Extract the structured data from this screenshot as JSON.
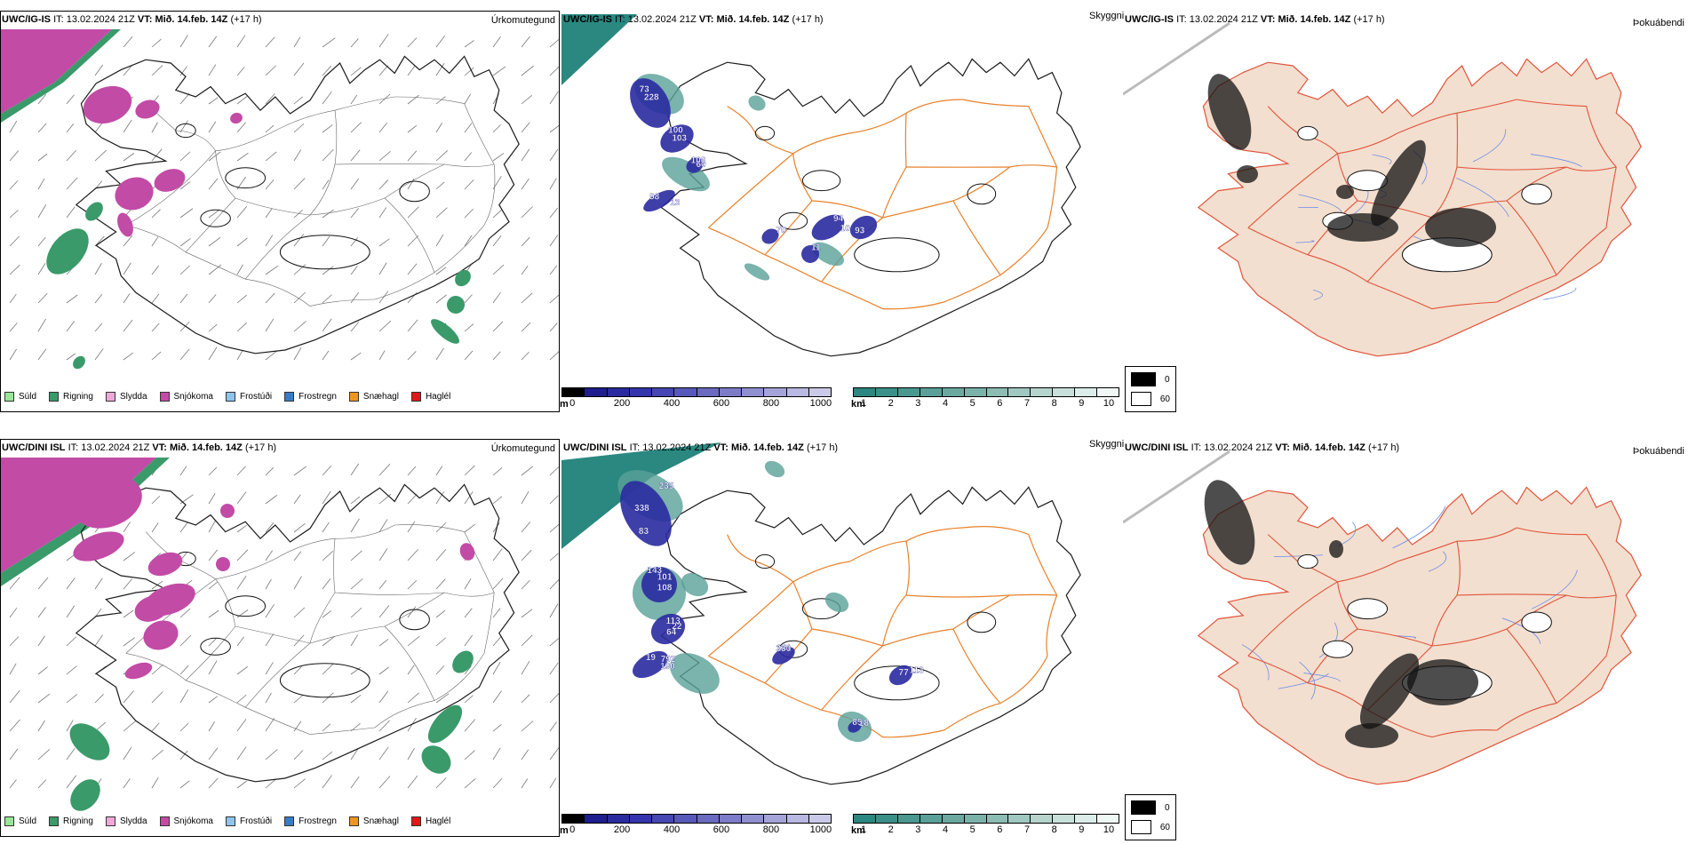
{
  "rows": [
    {
      "model": "UWC/IG-IS",
      "it_label": "IT:",
      "it_value": "13.02.2024 21Z",
      "vt_label": "VT:",
      "vt_value": "Mið. 14.feb. 14Z",
      "lead": "(+17 h)"
    },
    {
      "model": "UWC/DINI ISL",
      "it_label": "IT:",
      "it_value": "13.02.2024 21Z",
      "vt_label": "VT:",
      "vt_value": "Mið. 14.feb. 14Z",
      "lead": "(+17 h)"
    }
  ],
  "panel_titles": {
    "precip_type": "Úrkomutegund",
    "visibility": "Skyggni",
    "fog": "Þokuábendi"
  },
  "precip_legend": [
    {
      "label": "Súld",
      "color": "#98e698"
    },
    {
      "label": "Rigning",
      "color": "#3a9a6a"
    },
    {
      "label": "Slydda",
      "color": "#f0a8d8"
    },
    {
      "label": "Snjókoma",
      "color": "#c24ba6"
    },
    {
      "label": "Frostúði",
      "color": "#8fc4ef"
    },
    {
      "label": "Frostregn",
      "color": "#3b7bc4"
    },
    {
      "label": "Snæhagl",
      "color": "#f0961e"
    },
    {
      "label": "Haglél",
      "color": "#e01818"
    }
  ],
  "ceiling_scale": {
    "unit": "m",
    "ticks": [
      "0",
      "200",
      "400",
      "600",
      "800",
      "1000"
    ],
    "colors": [
      "#000000",
      "#1e1e8c",
      "#2a2aa0",
      "#3434ad",
      "#4646b4",
      "#5858ba",
      "#6a6ac0",
      "#7c7cc8",
      "#9090d0",
      "#a4a4d8",
      "#b8b8e0",
      "#cacae8"
    ]
  },
  "visibility_scale": {
    "unit": "km",
    "ticks": [
      "1",
      "2",
      "3",
      "4",
      "5",
      "6",
      "7",
      "8",
      "9",
      "10"
    ],
    "colors": [
      "#2a8880",
      "#3a9088",
      "#4a9890",
      "#5aa098",
      "#6aa8a0",
      "#7ab2aa",
      "#8cbcb4",
      "#a0c8c0",
      "#b4d4cc",
      "#c8e0da",
      "#dcece8",
      "#f0f8f6"
    ]
  },
  "fog_legend": {
    "labels": [
      "0",
      "60"
    ],
    "colors": [
      "#000000",
      "#ffffff"
    ]
  },
  "ceiling_labels": [
    [
      "228",
      "103",
      "60",
      "98",
      "94",
      "93",
      "70",
      "11",
      "73",
      "100",
      "106",
      "13",
      "10"
    ],
    [
      "338",
      "143",
      "64",
      "190",
      "141",
      "113",
      "18",
      "235",
      "101",
      "22",
      "792",
      "330",
      "77",
      "85",
      "83",
      "108",
      "113",
      "19"
    ]
  ],
  "colors": {
    "coast": "#1a1a1a",
    "roads": "#e8812a",
    "land_fog": "#f3dfcf",
    "fog_roads": "#e0533a",
    "rivers": "#6b8ce8",
    "snow": "#c24ba6",
    "rain": "#3a9a6a",
    "vis_teal": "#2a8880",
    "ceiling_blue": "#2a2aa0"
  }
}
